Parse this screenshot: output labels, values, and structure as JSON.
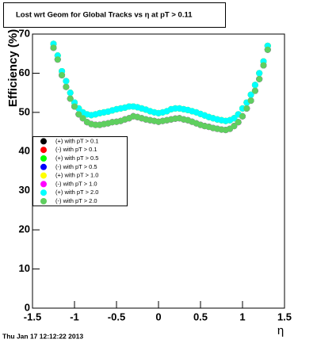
{
  "chart_data": {
    "type": "scatter",
    "title": "Lost wrt Geom for Global Tracks vs   η at pT > 0.11",
    "x_label": "η",
    "y_label": "Efficiency (%)",
    "timestamp": "Thu Jan 17 12:12:22 2013",
    "xlim": [
      -1.5,
      1.5
    ],
    "xticks": [
      -1.5,
      -1,
      -0.5,
      0,
      0.5,
      1,
      1.5
    ],
    "ylim": [
      0,
      70
    ],
    "yticks": [
      0,
      10,
      20,
      30,
      40,
      50,
      60,
      70
    ],
    "legend": "left",
    "x": [
      -1.25,
      -1.2,
      -1.15,
      -1.1,
      -1.05,
      -1,
      -0.95,
      -0.9,
      -0.85,
      -0.8,
      -0.75,
      -0.7,
      -0.65,
      -0.6,
      -0.55,
      -0.5,
      -0.45,
      -0.4,
      -0.35,
      -0.3,
      -0.25,
      -0.2,
      -0.15,
      -0.1,
      -0.05,
      0,
      0.05,
      0.1,
      0.15,
      0.2,
      0.25,
      0.3,
      0.35,
      0.4,
      0.45,
      0.5,
      0.55,
      0.6,
      0.65,
      0.7,
      0.75,
      0.8,
      0.85,
      0.9,
      0.95,
      1,
      1.05,
      1.1,
      1.15,
      1.2,
      1.25,
      1.3
    ],
    "series": [
      {
        "name": "(+) with pT > 0.1",
        "color": "#000000",
        "values": [
          67.5,
          64.5,
          60.5,
          58,
          55,
          52.5,
          51,
          50,
          49.5,
          49.3,
          49.5,
          49.8,
          50,
          50.2,
          50.5,
          50.8,
          51,
          51.2,
          51.5,
          51.5,
          51.3,
          51,
          50.7,
          50.3,
          50,
          49.8,
          50,
          50.3,
          50.8,
          51,
          51,
          50.8,
          50.6,
          50.3,
          50,
          49.6,
          49.2,
          48.8,
          48.5,
          48.2,
          48,
          47.8,
          48,
          48.5,
          49.5,
          51,
          52.5,
          54.5,
          57,
          60,
          63,
          67
        ]
      },
      {
        "name": "(-) with pT > 0.1",
        "color": "#ff0000",
        "values": [
          66.5,
          63.5,
          59.5,
          56.5,
          53.5,
          51.5,
          49.5,
          48.5,
          47.5,
          47,
          46.8,
          46.8,
          47,
          47.2,
          47.5,
          47.6,
          47.8,
          48.2,
          48.5,
          49,
          48.8,
          48.5,
          48.2,
          48,
          47.8,
          47.6,
          47.8,
          48,
          48.2,
          48.4,
          48.5,
          48.2,
          48,
          47.6,
          47.2,
          46.8,
          46.5,
          46.3,
          46,
          45.8,
          45.6,
          45.5,
          45.8,
          46.5,
          47.5,
          49,
          51,
          53,
          55.5,
          58.5,
          62,
          66
        ]
      },
      {
        "name": "(+) with pT > 0.5",
        "color": "#00ff00",
        "values": [
          67.5,
          64.5,
          60.5,
          58,
          55,
          52.5,
          51,
          50,
          49.5,
          49.3,
          49.5,
          49.8,
          50,
          50.2,
          50.5,
          50.8,
          51,
          51.2,
          51.5,
          51.5,
          51.3,
          51,
          50.7,
          50.3,
          50,
          49.8,
          50,
          50.3,
          50.8,
          51,
          51,
          50.8,
          50.6,
          50.3,
          50,
          49.6,
          49.2,
          48.8,
          48.5,
          48.2,
          48,
          47.8,
          48,
          48.5,
          49.5,
          51,
          52.5,
          54.5,
          57,
          60,
          63,
          67
        ]
      },
      {
        "name": "(-) with pT > 0.5",
        "color": "#0000ff",
        "values": [
          66.5,
          63.5,
          59.5,
          56.5,
          53.5,
          51.5,
          49.5,
          48.5,
          47.5,
          47,
          46.8,
          46.8,
          47,
          47.2,
          47.5,
          47.6,
          47.8,
          48.2,
          48.5,
          49,
          48.8,
          48.5,
          48.2,
          48,
          47.8,
          47.6,
          47.8,
          48,
          48.2,
          48.4,
          48.5,
          48.2,
          48,
          47.6,
          47.2,
          46.8,
          46.5,
          46.3,
          46,
          45.8,
          45.6,
          45.5,
          45.8,
          46.5,
          47.5,
          49,
          51,
          53,
          55.5,
          58.5,
          62,
          66
        ]
      },
      {
        "name": "(+) with pT > 1.0",
        "color": "#ffff00",
        "values": [
          67.5,
          64.5,
          60.5,
          58,
          55,
          52.5,
          51,
          50,
          49.5,
          49.3,
          49.5,
          49.8,
          50,
          50.2,
          50.5,
          50.8,
          51,
          51.2,
          51.5,
          51.5,
          51.3,
          51,
          50.7,
          50.3,
          50,
          49.8,
          50,
          50.3,
          50.8,
          51,
          51,
          50.8,
          50.6,
          50.3,
          50,
          49.6,
          49.2,
          48.8,
          48.5,
          48.2,
          48,
          47.8,
          48,
          48.5,
          49.5,
          51,
          52.5,
          54.5,
          57,
          60,
          63,
          67
        ]
      },
      {
        "name": "(-) with pT > 1.0",
        "color": "#ff00ff",
        "values": [
          66.5,
          63.5,
          59.5,
          56.5,
          53.5,
          51.5,
          49.5,
          48.5,
          47.5,
          47,
          46.8,
          46.8,
          47,
          47.2,
          47.5,
          47.6,
          47.8,
          48.2,
          48.5,
          49,
          48.8,
          48.5,
          48.2,
          48,
          47.8,
          47.6,
          47.8,
          48,
          48.2,
          48.4,
          48.5,
          48.2,
          48,
          47.6,
          47.2,
          46.8,
          46.5,
          46.3,
          46,
          45.8,
          45.6,
          45.5,
          45.8,
          46.5,
          47.5,
          49,
          51,
          53,
          55.5,
          58.5,
          62,
          66
        ]
      },
      {
        "name": "(+) with pT > 2.0",
        "color": "#00ffff",
        "values": [
          67.5,
          64.5,
          60.5,
          58,
          55,
          52.5,
          51,
          50,
          49.5,
          49.3,
          49.5,
          49.8,
          50,
          50.2,
          50.5,
          50.8,
          51,
          51.2,
          51.5,
          51.5,
          51.3,
          51,
          50.7,
          50.3,
          50,
          49.8,
          50,
          50.3,
          50.8,
          51,
          51,
          50.8,
          50.6,
          50.3,
          50,
          49.6,
          49.2,
          48.8,
          48.5,
          48.2,
          48,
          47.8,
          48,
          48.5,
          49.5,
          51,
          52.5,
          54.5,
          57,
          60,
          63,
          67
        ]
      },
      {
        "name": "(-) with pT > 2.0",
        "color": "#5fcf5f",
        "values": [
          66.5,
          63.5,
          59.5,
          56.5,
          53.5,
          51.5,
          49.5,
          48.5,
          47.5,
          47,
          46.8,
          46.8,
          47,
          47.2,
          47.5,
          47.6,
          47.8,
          48.2,
          48.5,
          49,
          48.8,
          48.5,
          48.2,
          48,
          47.8,
          47.6,
          47.8,
          48,
          48.2,
          48.4,
          48.5,
          48.2,
          48,
          47.6,
          47.2,
          46.8,
          46.5,
          46.3,
          46,
          45.8,
          45.6,
          45.5,
          45.8,
          46.5,
          47.5,
          49,
          51,
          53,
          55.5,
          58.5,
          62,
          66
        ]
      }
    ]
  }
}
